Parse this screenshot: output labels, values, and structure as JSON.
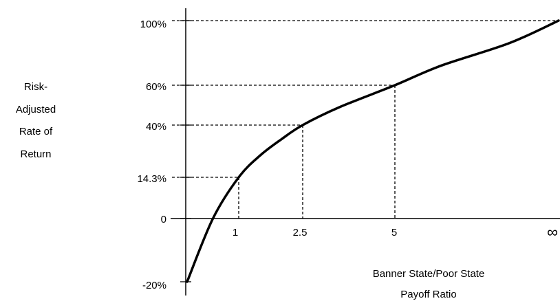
{
  "chart_data": {
    "type": "line",
    "ylabel_lines": [
      "Risk-",
      "Adjusted",
      "Rate of",
      "Return"
    ],
    "xlabel_lines": [
      "Banner State/Poor State",
      "Payoff Ratio"
    ],
    "y_ticks": [
      {
        "label": "100%",
        "value": 100
      },
      {
        "label": "60%",
        "value": 60
      },
      {
        "label": "40%",
        "value": 40
      },
      {
        "label": "14.3%",
        "value": 14.3
      },
      {
        "label": "0",
        "value": 0
      },
      {
        "label": "-20%",
        "value": -20
      }
    ],
    "x_ticks": [
      {
        "label": "1",
        "value": 1
      },
      {
        "label": "2.5",
        "value": 2.5
      },
      {
        "label": "5",
        "value": 5
      },
      {
        "label": "∞",
        "value": "inf"
      }
    ],
    "reference_points": [
      {
        "x": 1,
        "y": 14.3
      },
      {
        "x": 2.5,
        "y": 40
      },
      {
        "x": 5,
        "y": 60
      },
      {
        "x": "inf",
        "y": 100
      }
    ],
    "series": [
      {
        "points": [
          {
            "x": 0,
            "y": -20
          },
          {
            "x": 0.5,
            "y": 0
          },
          {
            "x": 1,
            "y": 14.3
          },
          {
            "x": 1.5,
            "y": 25
          },
          {
            "x": 2,
            "y": 33
          },
          {
            "x": 2.5,
            "y": 40
          },
          {
            "x": 3.5,
            "y": 49
          },
          {
            "x": 5,
            "y": 60
          },
          {
            "x": 7,
            "y": 72
          },
          {
            "x": 10,
            "y": 86
          },
          {
            "x": "inf",
            "y": 100
          }
        ]
      }
    ],
    "grid": false
  }
}
